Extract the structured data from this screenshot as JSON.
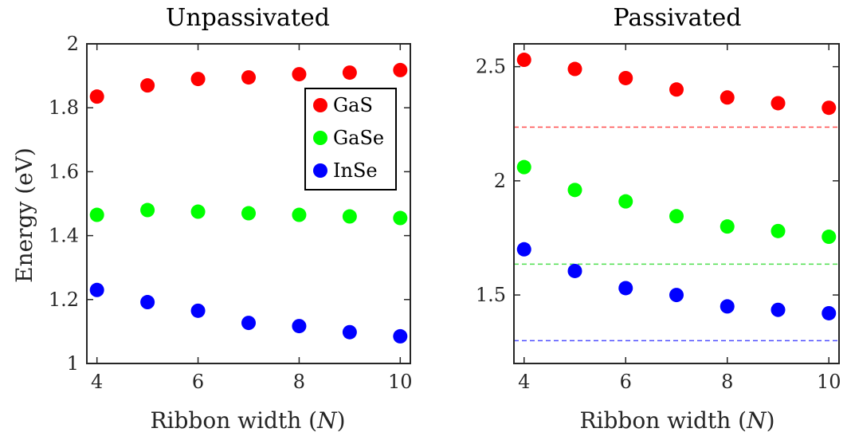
{
  "chart_data": [
    {
      "type": "scatter",
      "title": "Unpassivated",
      "xlabel": "Ribbon width (N)",
      "xlabel_prefix": "Ribbon width (",
      "xlabel_var": "N",
      "xlabel_suffix": ")",
      "ylabel": "Energy (eV)",
      "xlim": [
        3.8,
        10.2
      ],
      "ylim": [
        1.0,
        2.0
      ],
      "xticks": [
        4,
        6,
        8,
        10
      ],
      "yticks": [
        1,
        1.2,
        1.4,
        1.6,
        1.8,
        2
      ],
      "ytick_labels": [
        "1",
        "1.2",
        "1.4",
        "1.6",
        "1.8",
        "2"
      ],
      "grid": false,
      "legend_position": "top-right",
      "x": [
        4,
        5,
        6,
        7,
        8,
        9,
        10
      ],
      "series": [
        {
          "name": "GaS",
          "color": "#ff0000",
          "values": [
            1.835,
            1.87,
            1.89,
            1.895,
            1.905,
            1.91,
            1.918
          ]
        },
        {
          "name": "GaSe",
          "color": "#00ff00",
          "values": [
            1.465,
            1.48,
            1.475,
            1.47,
            1.465,
            1.46,
            1.455
          ]
        },
        {
          "name": "InSe",
          "color": "#0000ff",
          "values": [
            1.23,
            1.192,
            1.165,
            1.127,
            1.117,
            1.098,
            1.085
          ]
        }
      ]
    },
    {
      "type": "scatter",
      "title": "Passivated",
      "xlabel": "Ribbon width (N)",
      "xlabel_prefix": "Ribbon width (",
      "xlabel_var": "N",
      "xlabel_suffix": ")",
      "xlim": [
        3.8,
        10.2
      ],
      "ylim": [
        1.2,
        2.6
      ],
      "xticks": [
        4,
        6,
        8,
        10
      ],
      "yticks": [
        1.5,
        2,
        2.5
      ],
      "ytick_labels": [
        "1.5",
        "2",
        "2.5"
      ],
      "grid": false,
      "x": [
        4,
        5,
        6,
        7,
        8,
        9,
        10
      ],
      "series": [
        {
          "name": "GaS",
          "color": "#ff0000",
          "values": [
            2.53,
            2.49,
            2.45,
            2.4,
            2.365,
            2.34,
            2.32
          ]
        },
        {
          "name": "GaSe",
          "color": "#00ff00",
          "values": [
            2.06,
            1.96,
            1.91,
            1.845,
            1.8,
            1.78,
            1.755
          ]
        },
        {
          "name": "InSe",
          "color": "#0000ff",
          "values": [
            1.7,
            1.605,
            1.53,
            1.5,
            1.45,
            1.435,
            1.42
          ]
        }
      ],
      "reference_lines": [
        {
          "series": "GaS",
          "y": 2.235,
          "color": "#ff4d4d",
          "style": "dashed"
        },
        {
          "series": "GaSe",
          "y": 1.635,
          "color": "#4ddf4d",
          "style": "dashed"
        },
        {
          "series": "InSe",
          "y": 1.3,
          "color": "#4d4dff",
          "style": "dashed"
        }
      ]
    }
  ]
}
